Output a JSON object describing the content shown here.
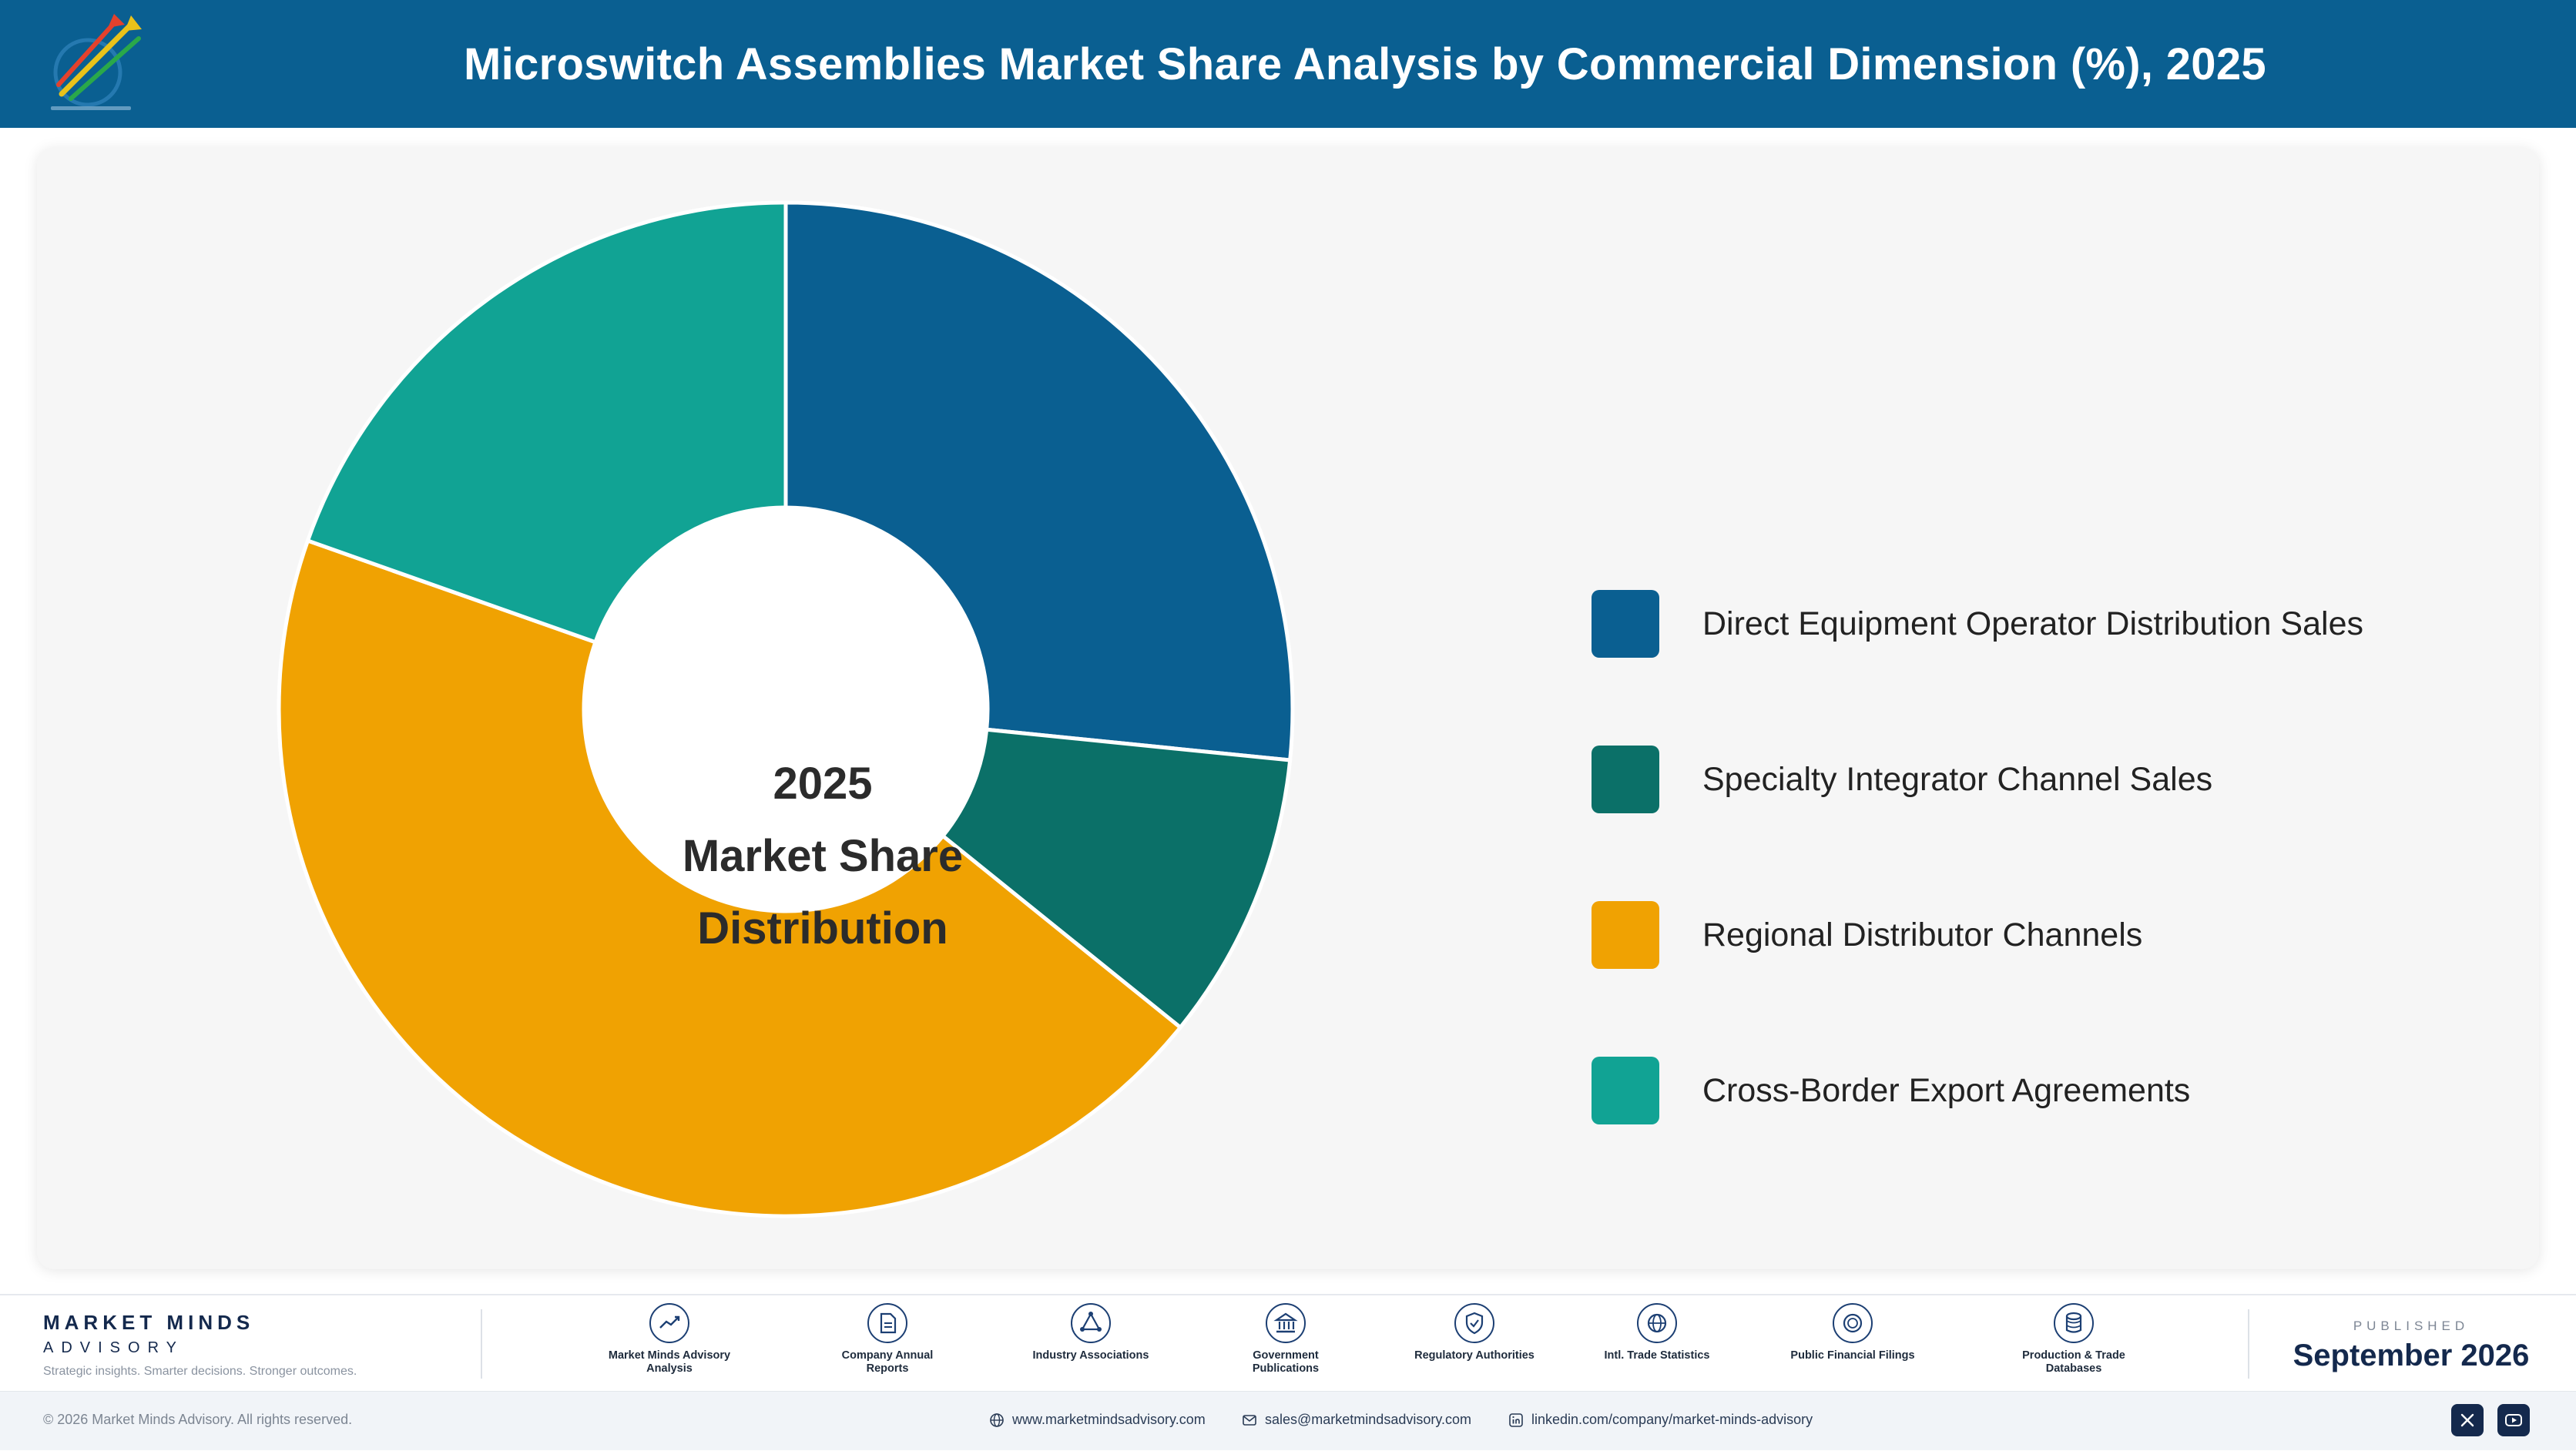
{
  "header": {
    "title": "Microswitch Assemblies Market Share Analysis by Commercial Dimension (%), 2025"
  },
  "chart_data": {
    "type": "pie",
    "variant": "donut",
    "title": "Microswitch Assemblies Market Share Analysis by Commercial Dimension (%), 2025",
    "center_label": [
      "2025",
      "Market Share",
      "Distribution"
    ],
    "legend_position": "right",
    "series": [
      {
        "name": "Direct Equipment Operator Distribution Sales",
        "value": 26.6,
        "color": "#0a5f91"
      },
      {
        "name": "Specialty Integrator Channel Sales",
        "value": 9.2,
        "color": "#0b7068"
      },
      {
        "name": "Regional Distributor Channels",
        "value": 44.6,
        "color": "#f0a202"
      },
      {
        "name": "Cross-Border Export Agreements",
        "value": 19.6,
        "color": "#11a394"
      }
    ]
  },
  "footer": {
    "brand_name": "MARKET MINDS",
    "brand_sub": "ADVISORY",
    "tagline": "Strategic insights. Smarter decisions. Stronger outcomes.",
    "sources": [
      {
        "icon": "trend-chart-icon",
        "label": "Market Minds Advisory Analysis"
      },
      {
        "icon": "document-icon",
        "label": "Company Annual Reports"
      },
      {
        "icon": "network-icon",
        "label": "Industry Associations"
      },
      {
        "icon": "government-building-icon",
        "label": "Government Publications"
      },
      {
        "icon": "shield-check-icon",
        "label": "Regulatory Authorities"
      },
      {
        "icon": "globe-icon",
        "label": "Intl. Trade Statistics"
      },
      {
        "icon": "coin-icon",
        "label": "Public Financial Filings"
      },
      {
        "icon": "database-icon",
        "label": "Production & Trade Databases"
      }
    ],
    "published_label": "PUBLISHED",
    "published_date": "September 2026",
    "copyright": "© 2026 Market Minds Advisory. All rights reserved.",
    "website": "www.marketmindsadvisory.com",
    "email": "sales@marketmindsadvisory.com",
    "linkedin": "linkedin.com/company/market-minds-advisory"
  }
}
